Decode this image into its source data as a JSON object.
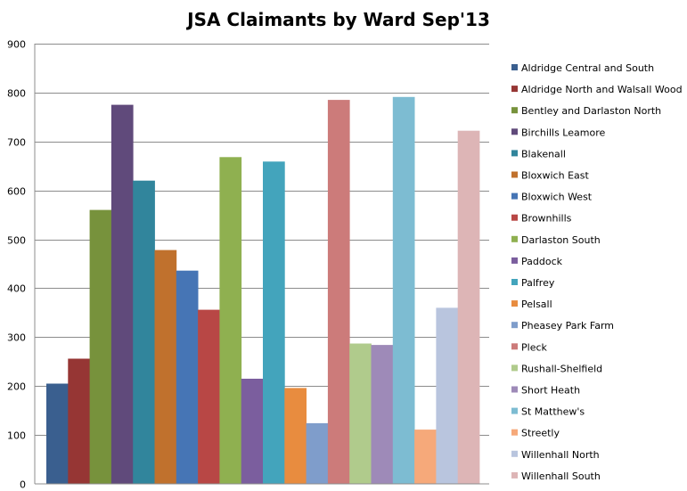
{
  "chart_data": {
    "type": "bar",
    "title": "JSA Claimants by Ward Sep'13",
    "xlabel": "",
    "ylabel": "",
    "ylim": [
      0,
      900
    ],
    "yticks": [
      0,
      100,
      200,
      300,
      400,
      500,
      600,
      700,
      800,
      900
    ],
    "grid": true,
    "legend_position": "right",
    "series": [
      {
        "name": "Aldridge Central and South",
        "value": 205,
        "color": "#3A5F8F"
      },
      {
        "name": "Aldridge North and Walsall Wood",
        "value": 256,
        "color": "#963634"
      },
      {
        "name": "Bentley and Darlaston North",
        "value": 560,
        "color": "#77923C"
      },
      {
        "name": "Birchills Leamore",
        "value": 775,
        "color": "#604A7B"
      },
      {
        "name": "Blakenall",
        "value": 620,
        "color": "#31859C"
      },
      {
        "name": "Bloxwich East",
        "value": 478,
        "color": "#C0712D"
      },
      {
        "name": "Bloxwich West",
        "value": 436,
        "color": "#4675B5"
      },
      {
        "name": "Brownhills",
        "value": 356,
        "color": "#B84745"
      },
      {
        "name": "Darlaston South",
        "value": 668,
        "color": "#8FB050"
      },
      {
        "name": "Paddock",
        "value": 215,
        "color": "#7B5E9E"
      },
      {
        "name": "Palfrey",
        "value": 659,
        "color": "#43A4BC"
      },
      {
        "name": "Pelsall",
        "value": 196,
        "color": "#E88C3F"
      },
      {
        "name": "Pheasey Park Farm",
        "value": 124,
        "color": "#7F9DCB"
      },
      {
        "name": "Pleck",
        "value": 785,
        "color": "#CC7B7A"
      },
      {
        "name": "Rushall-Shelfield",
        "value": 287,
        "color": "#B0CB8C"
      },
      {
        "name": "Short Heath",
        "value": 284,
        "color": "#9E8AB8"
      },
      {
        "name": "St Matthew's",
        "value": 791,
        "color": "#7DBCD2"
      },
      {
        "name": "Streetly",
        "value": 111,
        "color": "#F6A97A"
      },
      {
        "name": "Willenhall North",
        "value": 360,
        "color": "#B9C5DE"
      },
      {
        "name": "Willenhall South",
        "value": 722,
        "color": "#DDB5B6"
      }
    ]
  }
}
